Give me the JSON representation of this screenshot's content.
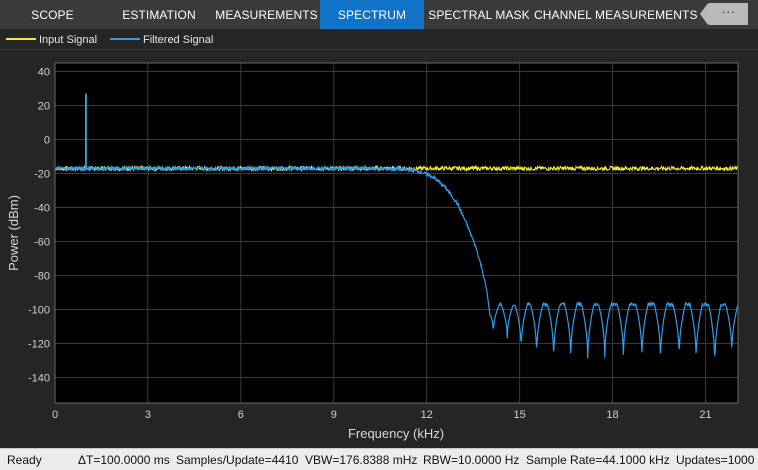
{
  "toolstrip": {
    "tabs": [
      {
        "label": "SCOPE",
        "active": false
      },
      {
        "label": "ESTIMATION",
        "active": false
      },
      {
        "label": "MEASUREMENTS",
        "active": false
      },
      {
        "label": "SPECTRUM",
        "active": true
      },
      {
        "label": "SPECTRAL MASK",
        "active": false
      },
      {
        "label": "CHANNEL MEASUREMENTS",
        "active": false
      }
    ],
    "collapse_icon": "more-options-icon",
    "collapse_label": "···"
  },
  "legend": {
    "items": [
      {
        "label": "Input Signal",
        "color": "#f2ea3d"
      },
      {
        "label": "Filtered Signal",
        "color": "#2f9bea"
      }
    ]
  },
  "chart_data": {
    "type": "line",
    "xlabel": "Frequency (kHz)",
    "ylabel": "Power (dBm)",
    "xlim": [
      0,
      22.05
    ],
    "ylim": [
      -155,
      45
    ],
    "xticks": [
      0,
      3,
      6,
      9,
      12,
      15,
      18,
      21
    ],
    "yticks": [
      40,
      20,
      0,
      -20,
      -40,
      -60,
      -80,
      -100,
      -120,
      -140
    ],
    "grid": true,
    "background": "#000000",
    "series": [
      {
        "name": "Input Signal",
        "color": "#f2ea3d",
        "x": [
          0,
          1,
          2,
          4,
          6,
          8,
          10,
          12,
          14,
          16,
          18,
          20,
          22.05
        ],
        "y": [
          -17,
          -17,
          -17,
          -17,
          -17,
          -17,
          -17,
          -17,
          -17,
          -17,
          -17,
          -17,
          -17
        ],
        "peaks": [
          {
            "x": 1.0,
            "y": 27
          }
        ]
      },
      {
        "name": "Filtered Signal",
        "color": "#2f9bea",
        "x": [
          0,
          1,
          4,
          8,
          10,
          11.3,
          11.8,
          12.2,
          12.6,
          13.0,
          13.3,
          13.6,
          13.8,
          13.95,
          14.05,
          14.1,
          22.05
        ],
        "y": [
          -17,
          -17,
          -17,
          -17,
          -17,
          -17.5,
          -19,
          -22,
          -28,
          -38,
          -50,
          -64,
          -77,
          -90,
          -100,
          -97,
          -97
        ],
        "peaks": [
          {
            "x": 1.0,
            "y": 27
          }
        ],
        "stopband_notches_x": [
          14.15,
          14.6,
          15.05,
          15.55,
          16.1,
          16.65,
          17.2,
          17.75,
          18.35,
          18.95,
          19.55,
          20.15,
          20.7,
          21.3,
          21.85
        ],
        "stopband_notches_y": [
          -115,
          -118,
          -125,
          -128,
          -130,
          -130,
          -132,
          -130,
          -130,
          -130,
          -132,
          -130,
          -132,
          -135,
          -128
        ]
      }
    ]
  },
  "status": {
    "ready": "Ready",
    "delta_t": "ΔT=100.0000 ms",
    "samples_update": "Samples/Update=4410",
    "vbw": "VBW=176.8388 mHz",
    "rbw": "RBW=10.0000 Hz",
    "sample_rate": "Sample Rate=44.1000 kHz",
    "updates": "Updates=1000"
  }
}
